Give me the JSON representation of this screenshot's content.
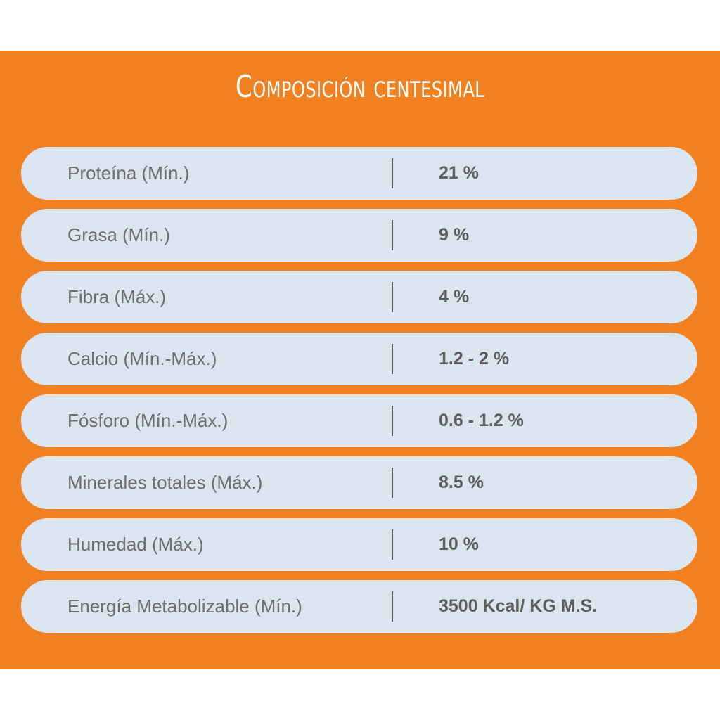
{
  "title": "Composición centesimal",
  "colors": {
    "panel_background": "#f08020",
    "row_background": "#dbe5f0",
    "title_text": "#ffffff",
    "label_text": "#6e6e6e",
    "value_text": "#5e5e5e"
  },
  "rows": [
    {
      "label": "Proteína (Mín.)",
      "value": "21 %"
    },
    {
      "label": "Grasa (Mín.)",
      "value": "9 %"
    },
    {
      "label": "Fibra (Máx.)",
      "value": "4 %"
    },
    {
      "label": "Calcio (Mín.-Máx.)",
      "value": "1.2 - 2 %"
    },
    {
      "label": "Fósforo (Mín.-Máx.)",
      "value": "0.6 - 1.2 %"
    },
    {
      "label": "Minerales totales (Máx.)",
      "value": "8.5 %"
    },
    {
      "label": "Humedad (Máx.)",
      "value": "10 %"
    },
    {
      "label": "Energía Metabolizable (Mín.)",
      "value": "3500 Kcal/ KG M.S."
    }
  ]
}
